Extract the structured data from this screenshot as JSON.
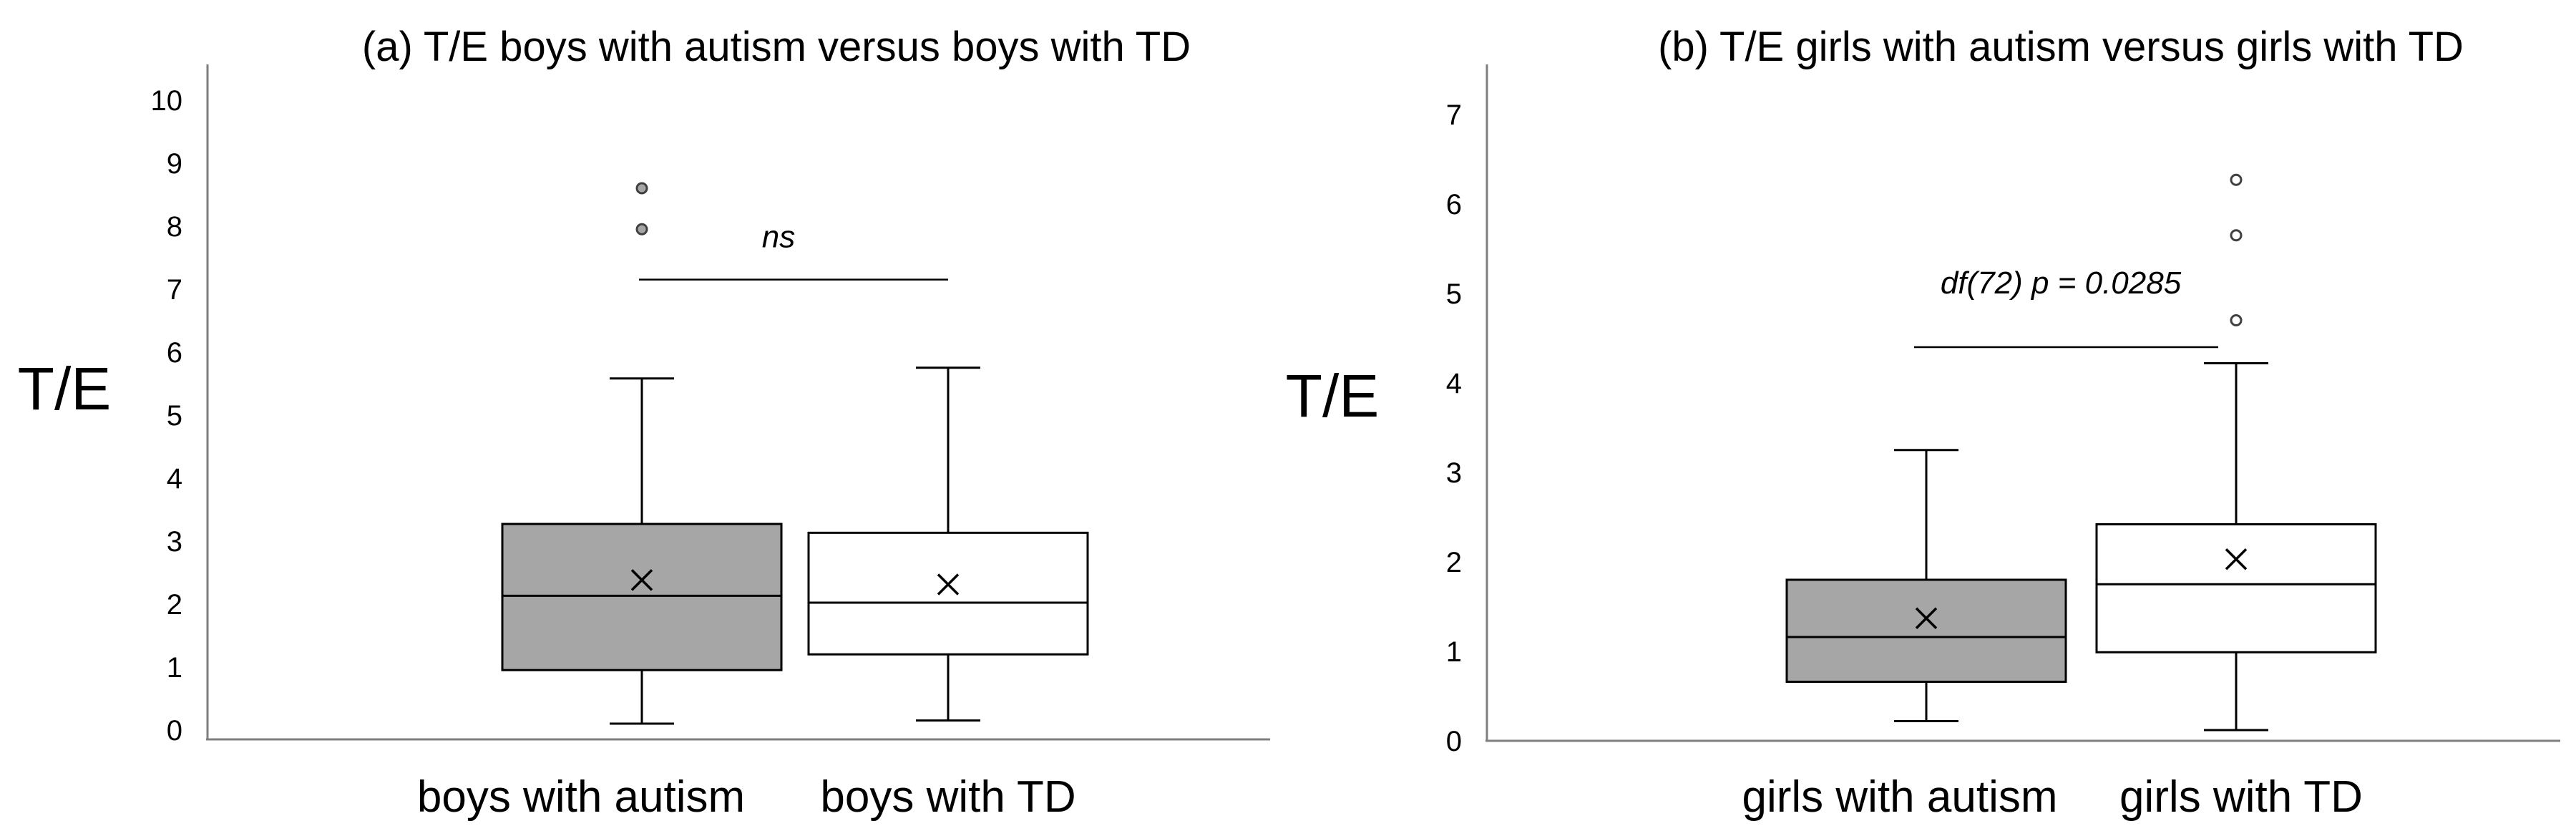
{
  "chart_data": [
    {
      "type": "box",
      "title": "(a) T/E boys with autism versus boys with TD",
      "ylabel": "T/E",
      "xlabel": "",
      "ylim": [
        0,
        10
      ],
      "yticks": [
        "0",
        "1",
        "2",
        "3",
        "4",
        "5",
        "6",
        "7",
        "8",
        "9",
        "10"
      ],
      "grid": false,
      "categories": [
        "boys with autism",
        "boys with TD"
      ],
      "boxes": [
        {
          "category": "boys with autism",
          "fill": "#a6a6a6",
          "whisker_low": 0.25,
          "q1": 1.1,
          "median": 2.28,
          "q3": 3.42,
          "whisker_high": 5.73,
          "mean": 2.53,
          "outliers": [
            8.1,
            8.75
          ]
        },
        {
          "category": "boys with TD",
          "fill": "#ffffff",
          "whisker_low": 0.3,
          "q1": 1.35,
          "median": 2.17,
          "q3": 3.28,
          "whisker_high": 5.9,
          "mean": 2.46,
          "outliers": []
        }
      ],
      "annotation": {
        "text": "ns",
        "y": 7.3
      }
    },
    {
      "type": "box",
      "title": "(b) T/E girls with autism versus girls with TD",
      "ylabel": "T/E",
      "xlabel": "",
      "ylim": [
        0,
        7
      ],
      "yticks": [
        "0",
        "1",
        "2",
        "3",
        "4",
        "5",
        "6",
        "7"
      ],
      "grid": false,
      "categories": [
        "girls with autism",
        "girls with TD"
      ],
      "boxes": [
        {
          "category": "girls with autism",
          "fill": "#a6a6a6",
          "whisker_low": 0.22,
          "q1": 0.66,
          "median": 1.16,
          "q3": 1.8,
          "whisker_high": 3.25,
          "mean": 1.37,
          "outliers": []
        },
        {
          "category": "girls with TD",
          "fill": "#ffffff",
          "whisker_low": 0.12,
          "q1": 0.99,
          "median": 1.75,
          "q3": 2.42,
          "whisker_high": 4.22,
          "mean": 2.03,
          "outliers": [
            4.7,
            5.65,
            6.27
          ]
        }
      ],
      "annotation": {
        "text": "df(72) p = 0.0285",
        "y": 4.4
      }
    }
  ]
}
